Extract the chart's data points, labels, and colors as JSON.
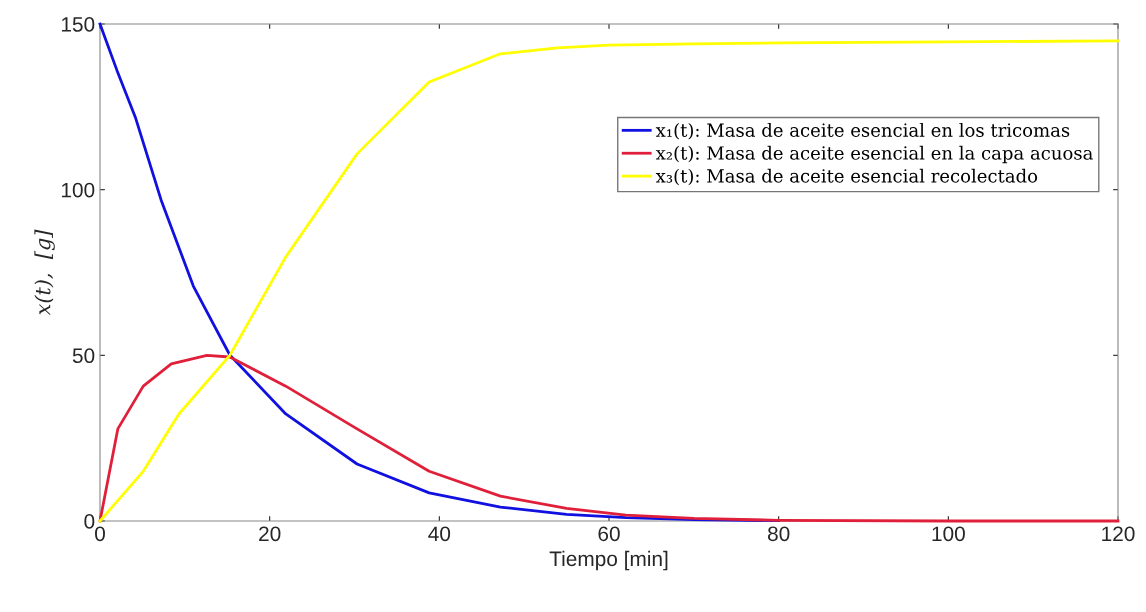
{
  "chart_data": {
    "type": "line",
    "xlabel": "Tiempo [min]",
    "ylabel": "x(t),  [g]",
    "xlim": [
      0,
      120
    ],
    "ylim": [
      0,
      150
    ],
    "xticks": [
      0,
      20,
      40,
      60,
      80,
      100,
      120
    ],
    "yticks": [
      0,
      50,
      100,
      150
    ],
    "grid": false,
    "legend": "top right",
    "marker": "none",
    "line_style": "solid",
    "series": [
      {
        "name": "x₁(t): Masa de aceite esencial en los tricomas",
        "color": "#1010e0",
        "x": [
          0,
          2,
          4.2,
          7.2,
          11,
          15.3,
          21.9,
          30.3,
          38.8,
          47.2,
          55,
          62,
          70,
          80
        ],
        "values": [
          150,
          136,
          121.6,
          96.9,
          70.9,
          50.1,
          32.3,
          17.2,
          8.5,
          4.2,
          2,
          1,
          0.4,
          0.1
        ]
      },
      {
        "name": "x₂(t): Masa de aceite esencial en la capa acuosa",
        "color": "#e0203a",
        "x": [
          0,
          2.1,
          5.1,
          8.4,
          12.6,
          15.3,
          21.9,
          30.3,
          38.8,
          47.2,
          55,
          62,
          70,
          80,
          100,
          120
        ],
        "values": [
          0,
          27.8,
          40.7,
          47.4,
          50,
          49.5,
          40.7,
          27.8,
          15,
          7.5,
          3.8,
          1.8,
          0.8,
          0.2,
          0,
          0
        ]
      },
      {
        "name": "x₃(t): Masa de aceite esencial recolectado",
        "color": "#ffff00",
        "x": [
          0,
          5.1,
          9.3,
          15.3,
          21.9,
          30.3,
          38.8,
          47.2,
          53.9,
          60,
          70,
          80,
          100,
          120
        ],
        "values": [
          0,
          15,
          32.3,
          50,
          79.7,
          110.8,
          132.5,
          141,
          142.8,
          143.6,
          144,
          144.3,
          144.6,
          144.9
        ]
      }
    ]
  }
}
